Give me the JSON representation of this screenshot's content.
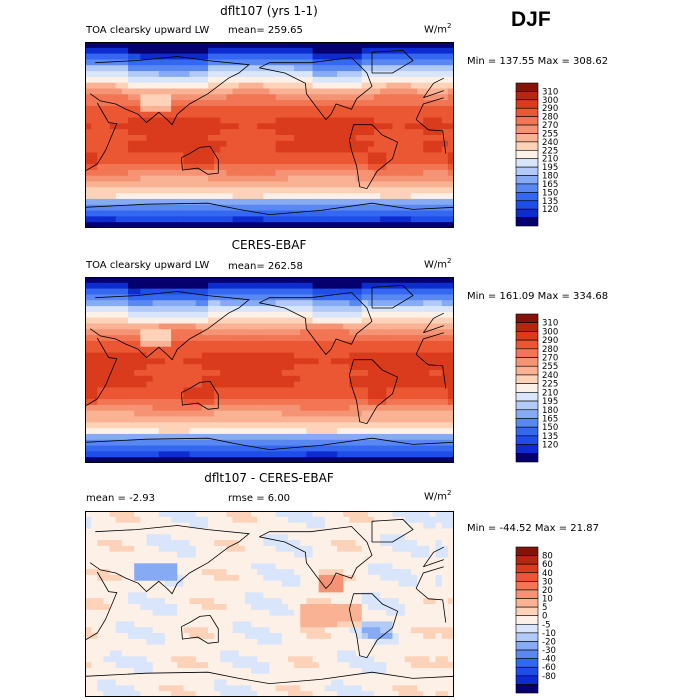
{
  "season": "DJF",
  "colors": {
    "abs": [
      "#05006e",
      "#0d2ccf",
      "#1e4de8",
      "#3568f0",
      "#5a88f2",
      "#87aaf4",
      "#b2caf7",
      "#d8e5fa",
      "#fdf0e6",
      "#fcd2b8",
      "#f9b394",
      "#f59474",
      "#f27554",
      "#ec5733",
      "#d93b1c",
      "#b32812",
      "#86130a"
    ],
    "diff": [
      "#05006e",
      "#0d2ccf",
      "#1e4de8",
      "#3568f0",
      "#5a88f2",
      "#87aaf4",
      "#b2caf7",
      "#d8e5fa",
      "#fdf0e6",
      "#fcd2b8",
      "#f9b394",
      "#f59474",
      "#f27554",
      "#ec5733",
      "#d93b1c",
      "#b32812",
      "#86130a"
    ]
  },
  "panels": [
    {
      "id": "model",
      "title": "dflt107 (yrs 1-1)",
      "var_label": "TOA clearsky upward LW",
      "mean_text": "mean= 259.65",
      "units": "W/m",
      "units_sup": "2",
      "stats": "Min = 137.55 Max = 308.62"
    },
    {
      "id": "obs",
      "title": "CERES-EBAF",
      "var_label": "TOA clearsky upward LW",
      "mean_text": "mean= 262.58",
      "units": "W/m",
      "units_sup": "2",
      "stats": "Min = 161.09 Max = 334.68"
    },
    {
      "id": "diff",
      "title": "dflt107 - CERES-EBAF",
      "mean_text": "mean =   -2.93",
      "rmse_text": "rmse =    6.00",
      "units": "W/m",
      "units_sup": "2",
      "stats": "Min = -44.52 Max =  21.87"
    }
  ],
  "chart_data": [
    {
      "type": "heatmap",
      "title": "dflt107 (yrs 1-1)",
      "subtitle": "TOA clearsky upward LW",
      "mean": 259.65,
      "min": 137.55,
      "max": 308.62,
      "units": "W/m2",
      "colorbar_levels": [
        "310",
        "300",
        "290",
        "280",
        "270",
        "255",
        "240",
        "225",
        "210",
        "195",
        "180",
        "165",
        "150",
        "135",
        "120"
      ]
    },
    {
      "type": "heatmap",
      "title": "CERES-EBAF",
      "subtitle": "TOA clearsky upward LW",
      "mean": 262.58,
      "min": 161.09,
      "max": 334.68,
      "units": "W/m2",
      "colorbar_levels": [
        "310",
        "300",
        "290",
        "280",
        "270",
        "255",
        "240",
        "225",
        "210",
        "195",
        "180",
        "165",
        "150",
        "135",
        "120"
      ]
    },
    {
      "type": "heatmap",
      "title": "dflt107 - CERES-EBAF",
      "mean": -2.93,
      "rmse": 6.0,
      "min": -44.52,
      "max": 21.87,
      "units": "W/m2",
      "colorbar_levels": [
        "80",
        "60",
        "40",
        "30",
        "20",
        "10",
        "5",
        "0",
        "-5",
        "-10",
        "-20",
        "-30",
        "-40",
        "-60",
        "-80"
      ]
    }
  ]
}
